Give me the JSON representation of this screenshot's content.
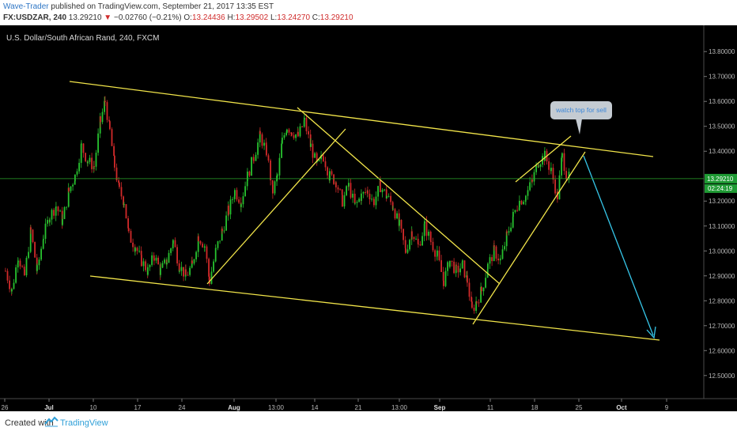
{
  "header": {
    "author": "Wave-Trader",
    "published": "published on TradingView.com, September 21, 2017 13:35 EST",
    "symbol": "FX:USDZAR, 240",
    "price": "13.29210",
    "change": "−0.02760 (−0.21%)",
    "open_label": "O:",
    "open": "13.24436",
    "high_label": "H:",
    "high": "13.29502",
    "low_label": "L:",
    "low": "13.24270",
    "close_label": "C:",
    "close": "13.29210"
  },
  "chart_data": {
    "type": "candlestick",
    "title": "U.S. Dollar/South African Rand, 240, FXCM",
    "y_range": [
      12.42,
      13.88
    ],
    "y_ticks": [
      "13.80000",
      "13.70000",
      "13.60000",
      "13.50000",
      "13.40000",
      "13.20000",
      "13.10000",
      "13.00000",
      "12.90000",
      "12.80000",
      "12.70000",
      "12.60000",
      "12.50000"
    ],
    "x_ticks": [
      {
        "label": "26",
        "px": 6
      },
      {
        "label": "Jul",
        "px": 62
      },
      {
        "label": "10",
        "px": 118
      },
      {
        "label": "17",
        "px": 174
      },
      {
        "label": "24",
        "px": 230
      },
      {
        "label": "Aug",
        "px": 296
      },
      {
        "label": "13:00",
        "px": 349
      },
      {
        "label": "14",
        "px": 398
      },
      {
        "label": "21",
        "px": 453
      },
      {
        "label": "13:00",
        "px": 505
      },
      {
        "label": "Sep",
        "px": 556
      },
      {
        "label": "11",
        "px": 620
      },
      {
        "label": "18",
        "px": 676
      },
      {
        "label": "25",
        "px": 732
      },
      {
        "label": "Oct",
        "px": 786
      },
      {
        "label": "9",
        "px": 843
      }
    ],
    "price_path": [
      [
        6,
        12.92
      ],
      [
        14,
        12.84
      ],
      [
        22,
        12.98
      ],
      [
        30,
        12.9
      ],
      [
        38,
        13.08
      ],
      [
        46,
        12.92
      ],
      [
        54,
        13.06
      ],
      [
        62,
        13.14
      ],
      [
        70,
        13.18
      ],
      [
        78,
        13.12
      ],
      [
        86,
        13.24
      ],
      [
        94,
        13.3
      ],
      [
        102,
        13.42
      ],
      [
        110,
        13.36
      ],
      [
        118,
        13.34
      ],
      [
        126,
        13.52
      ],
      [
        132,
        13.6
      ],
      [
        138,
        13.48
      ],
      [
        144,
        13.34
      ],
      [
        150,
        13.24
      ],
      [
        156,
        13.2
      ],
      [
        162,
        13.06
      ],
      [
        170,
        13.02
      ],
      [
        178,
        12.96
      ],
      [
        186,
        12.92
      ],
      [
        194,
        12.98
      ],
      [
        202,
        12.92
      ],
      [
        210,
        12.96
      ],
      [
        218,
        13.04
      ],
      [
        226,
        12.94
      ],
      [
        234,
        12.9
      ],
      [
        242,
        12.94
      ],
      [
        250,
        13.06
      ],
      [
        258,
        13.02
      ],
      [
        264,
        12.88
      ],
      [
        272,
        13.0
      ],
      [
        280,
        13.08
      ],
      [
        288,
        13.16
      ],
      [
        296,
        13.24
      ],
      [
        304,
        13.2
      ],
      [
        312,
        13.3
      ],
      [
        320,
        13.38
      ],
      [
        328,
        13.46
      ],
      [
        336,
        13.4
      ],
      [
        344,
        13.24
      ],
      [
        350,
        13.3
      ],
      [
        356,
        13.44
      ],
      [
        362,
        13.5
      ],
      [
        368,
        13.48
      ],
      [
        376,
        13.46
      ],
      [
        384,
        13.52
      ],
      [
        392,
        13.42
      ],
      [
        400,
        13.34
      ],
      [
        408,
        13.38
      ],
      [
        416,
        13.3
      ],
      [
        424,
        13.28
      ],
      [
        432,
        13.2
      ],
      [
        440,
        13.26
      ],
      [
        448,
        13.18
      ],
      [
        456,
        13.22
      ],
      [
        464,
        13.24
      ],
      [
        472,
        13.2
      ],
      [
        480,
        13.26
      ],
      [
        488,
        13.22
      ],
      [
        496,
        13.18
      ],
      [
        504,
        13.1
      ],
      [
        512,
        13.0
      ],
      [
        520,
        13.08
      ],
      [
        528,
        13.02
      ],
      [
        536,
        13.1
      ],
      [
        544,
        13.04
      ],
      [
        552,
        12.98
      ],
      [
        560,
        12.88
      ],
      [
        568,
        12.96
      ],
      [
        576,
        12.92
      ],
      [
        584,
        12.94
      ],
      [
        590,
        12.88
      ],
      [
        596,
        12.76
      ],
      [
        602,
        12.8
      ],
      [
        608,
        12.84
      ],
      [
        616,
        12.94
      ],
      [
        624,
        13.0
      ],
      [
        632,
        12.96
      ],
      [
        640,
        13.06
      ],
      [
        648,
        13.14
      ],
      [
        656,
        13.2
      ],
      [
        664,
        13.22
      ],
      [
        672,
        13.28
      ],
      [
        680,
        13.36
      ],
      [
        688,
        13.38
      ],
      [
        696,
        13.32
      ],
      [
        704,
        13.22
      ],
      [
        710,
        13.38
      ],
      [
        716,
        13.3
      ],
      [
        720,
        13.29
      ]
    ],
    "current_price_label": "13.29210",
    "countdown_label": "02:24:19",
    "annotation": "watch top for sell",
    "colors": {
      "background": "#000000",
      "up": "#27c22f",
      "down": "#d12a2a",
      "trendline": "#f2e54a",
      "projection": "#36c6e8",
      "price_line": "#2aa52a",
      "callout": "#c4cbd2",
      "callout_text": "#3d87d8"
    }
  },
  "footer": {
    "created_with": "Created with",
    "brand": "TradingView"
  }
}
